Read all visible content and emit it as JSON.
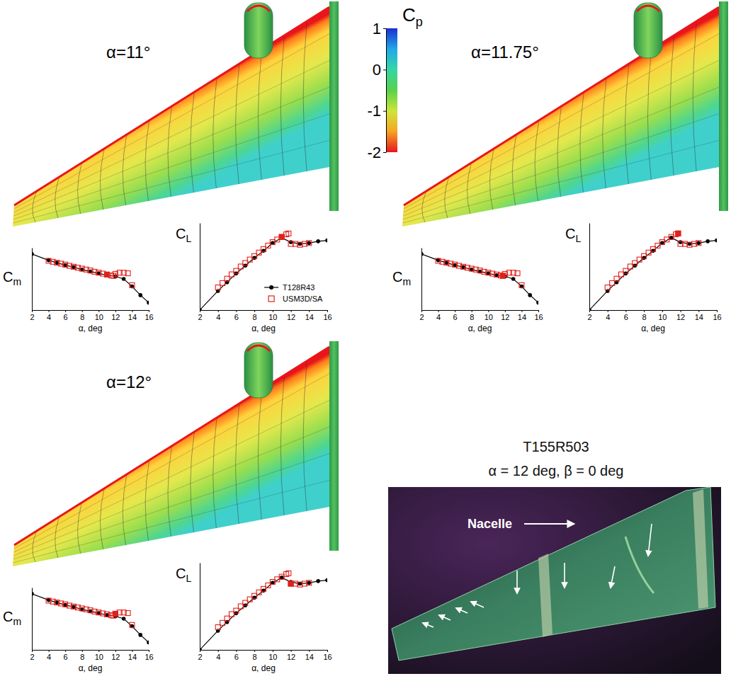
{
  "chart_data": [
    {
      "type": "line",
      "xlabel": "α, deg",
      "ylabel": "Cm",
      "xlim": [
        2,
        16
      ],
      "xticks": [
        2,
        4,
        6,
        8,
        10,
        12,
        14,
        16
      ],
      "ylim": [
        0,
        1
      ],
      "tick_labels": "x",
      "series": [
        {
          "color": "#000000",
          "marker": "circle",
          "line_style": "solid",
          "x": [
            2,
            4,
            5,
            6,
            7,
            8,
            9,
            10,
            11,
            12,
            13,
            14,
            15,
            16
          ],
          "values": [
            0.9,
            0.8,
            0.76,
            0.72,
            0.69,
            0.65,
            0.62,
            0.59,
            0.56,
            0.54,
            0.5,
            0.38,
            0.24,
            0.12
          ]
        },
        {
          "color": "#e0201b",
          "marker": "square-open",
          "line_style": "none",
          "x": [
            4,
            4.5,
            5,
            5.5,
            6,
            6.5,
            7,
            7.5,
            8,
            8.5,
            9,
            9.5,
            10,
            10.5,
            11,
            11.5,
            11.75,
            12,
            12.5,
            13,
            13.5,
            14
          ],
          "values": [
            0.79,
            0.775,
            0.76,
            0.745,
            0.73,
            0.71,
            0.695,
            0.68,
            0.665,
            0.65,
            0.635,
            0.615,
            0.6,
            0.585,
            0.57,
            0.555,
            0.55,
            0.58,
            0.6,
            0.6,
            0.59,
            0.4
          ]
        },
        {
          "color": "#e0201b",
          "marker": "square",
          "line_style": "none",
          "x": [
            11
          ],
          "values": [
            0.57
          ]
        }
      ]
    },
    {
      "type": "line",
      "xlabel": "α, deg",
      "ylabel": "CL",
      "xlim": [
        2,
        16
      ],
      "xticks": [
        2,
        4,
        6,
        8,
        10,
        12,
        14,
        16
      ],
      "ylim": [
        0,
        1
      ],
      "tick_labels": "x",
      "legend": "lower-right",
      "series": [
        {
          "name": "T128R43",
          "color": "#000000",
          "marker": "circle",
          "line_style": "solid",
          "x": [
            2,
            4,
            5,
            6,
            7,
            8,
            9,
            10,
            11,
            12,
            13,
            14,
            15,
            16
          ],
          "values": [
            0,
            0.22,
            0.32,
            0.42,
            0.51,
            0.6,
            0.68,
            0.77,
            0.83,
            0.78,
            0.76,
            0.77,
            0.79,
            0.8
          ]
        },
        {
          "name": "USM3D/SA",
          "color": "#e0201b",
          "marker": "square-open",
          "line_style": "none",
          "x": [
            4,
            4.5,
            5,
            5.5,
            6,
            6.5,
            7,
            7.5,
            8,
            8.5,
            9,
            9.5,
            10,
            10.5,
            11,
            11.5,
            11.75,
            12,
            12.5,
            13,
            13.5,
            14
          ],
          "values": [
            0.26,
            0.31,
            0.36,
            0.41,
            0.45,
            0.5,
            0.54,
            0.58,
            0.62,
            0.66,
            0.7,
            0.74,
            0.78,
            0.81,
            0.84,
            0.87,
            0.88,
            0.76,
            0.76,
            0.75,
            0.76,
            0.77
          ]
        },
        {
          "color": "#e0201b",
          "marker": "square",
          "line_style": "none",
          "x": [
            11
          ],
          "values": [
            0.84
          ]
        }
      ]
    },
    {
      "type": "line",
      "xlabel": "α, deg",
      "ylabel": "Cm",
      "xlim": [
        2,
        16
      ],
      "xticks": [
        2,
        4,
        6,
        8,
        10,
        12,
        14,
        16
      ],
      "ylim": [
        0,
        1
      ],
      "tick_labels": "x",
      "series": [
        {
          "color": "#000000",
          "marker": "circle",
          "line_style": "solid",
          "x": [
            2,
            4,
            5,
            6,
            7,
            8,
            9,
            10,
            11,
            12,
            13,
            14,
            15,
            16
          ],
          "values": [
            0.9,
            0.8,
            0.76,
            0.72,
            0.69,
            0.65,
            0.62,
            0.59,
            0.56,
            0.54,
            0.5,
            0.38,
            0.24,
            0.12
          ]
        },
        {
          "color": "#e0201b",
          "marker": "square-open",
          "line_style": "none",
          "x": [
            4,
            4.5,
            5,
            5.5,
            6,
            6.5,
            7,
            7.5,
            8,
            8.5,
            9,
            9.5,
            10,
            10.5,
            11,
            11.5,
            11.75,
            12,
            12.5,
            13,
            13.5,
            14
          ],
          "values": [
            0.79,
            0.775,
            0.76,
            0.745,
            0.73,
            0.71,
            0.695,
            0.68,
            0.665,
            0.65,
            0.635,
            0.615,
            0.6,
            0.585,
            0.57,
            0.555,
            0.55,
            0.58,
            0.6,
            0.6,
            0.59,
            0.4
          ]
        },
        {
          "color": "#e0201b",
          "marker": "square",
          "line_style": "none",
          "x": [
            11.75
          ],
          "values": [
            0.55
          ]
        }
      ]
    },
    {
      "type": "line",
      "xlabel": "α, deg",
      "ylabel": "CL",
      "xlim": [
        2,
        16
      ],
      "xticks": [
        2,
        4,
        6,
        8,
        10,
        12,
        14,
        16
      ],
      "ylim": [
        0,
        1
      ],
      "tick_labels": "x",
      "series": [
        {
          "color": "#000000",
          "marker": "circle",
          "line_style": "solid",
          "x": [
            2,
            4,
            5,
            6,
            7,
            8,
            9,
            10,
            11,
            12,
            13,
            14,
            15,
            16
          ],
          "values": [
            0,
            0.22,
            0.32,
            0.42,
            0.51,
            0.6,
            0.68,
            0.77,
            0.83,
            0.78,
            0.76,
            0.77,
            0.79,
            0.8
          ]
        },
        {
          "color": "#e0201b",
          "marker": "square-open",
          "line_style": "none",
          "x": [
            4,
            4.5,
            5,
            5.5,
            6,
            6.5,
            7,
            7.5,
            8,
            8.5,
            9,
            9.5,
            10,
            10.5,
            11,
            11.5,
            11.75,
            12,
            12.5,
            13,
            13.5,
            14
          ],
          "values": [
            0.26,
            0.31,
            0.36,
            0.41,
            0.45,
            0.5,
            0.54,
            0.58,
            0.62,
            0.66,
            0.7,
            0.74,
            0.78,
            0.81,
            0.84,
            0.87,
            0.88,
            0.76,
            0.76,
            0.75,
            0.76,
            0.77
          ]
        },
        {
          "color": "#e0201b",
          "marker": "square",
          "line_style": "none",
          "x": [
            11.75
          ],
          "values": [
            0.88
          ]
        }
      ]
    },
    {
      "type": "line",
      "xlabel": "α, deg",
      "ylabel": "Cm",
      "xlim": [
        2,
        16
      ],
      "xticks": [
        2,
        4,
        6,
        8,
        10,
        12,
        14,
        16
      ],
      "ylim": [
        0,
        1
      ],
      "tick_labels": "x",
      "series": [
        {
          "color": "#000000",
          "marker": "circle",
          "line_style": "solid",
          "x": [
            2,
            4,
            5,
            6,
            7,
            8,
            9,
            10,
            11,
            12,
            13,
            14,
            15,
            16
          ],
          "values": [
            0.9,
            0.8,
            0.76,
            0.72,
            0.69,
            0.65,
            0.62,
            0.59,
            0.56,
            0.54,
            0.5,
            0.38,
            0.24,
            0.12
          ]
        },
        {
          "color": "#e0201b",
          "marker": "square-open",
          "line_style": "none",
          "x": [
            4,
            4.5,
            5,
            5.5,
            6,
            6.5,
            7,
            7.5,
            8,
            8.5,
            9,
            9.5,
            10,
            10.5,
            11,
            11.5,
            11.75,
            12,
            12.5,
            13,
            13.5,
            14
          ],
          "values": [
            0.79,
            0.775,
            0.76,
            0.745,
            0.73,
            0.71,
            0.695,
            0.68,
            0.665,
            0.65,
            0.635,
            0.615,
            0.6,
            0.585,
            0.57,
            0.555,
            0.55,
            0.58,
            0.6,
            0.6,
            0.59,
            0.4
          ]
        },
        {
          "color": "#e0201b",
          "marker": "square",
          "line_style": "none",
          "x": [
            12
          ],
          "values": [
            0.58
          ]
        }
      ]
    },
    {
      "type": "line",
      "xlabel": "α, deg",
      "ylabel": "CL",
      "xlim": [
        2,
        16
      ],
      "xticks": [
        2,
        4,
        6,
        8,
        10,
        12,
        14,
        16
      ],
      "ylim": [
        0,
        1
      ],
      "tick_labels": "x",
      "series": [
        {
          "color": "#000000",
          "marker": "circle",
          "line_style": "solid",
          "x": [
            2,
            4,
            5,
            6,
            7,
            8,
            9,
            10,
            11,
            12,
            13,
            14,
            15,
            16
          ],
          "values": [
            0,
            0.22,
            0.32,
            0.42,
            0.51,
            0.6,
            0.68,
            0.77,
            0.83,
            0.78,
            0.76,
            0.77,
            0.79,
            0.8
          ]
        },
        {
          "color": "#e0201b",
          "marker": "square-open",
          "line_style": "none",
          "x": [
            4,
            4.5,
            5,
            5.5,
            6,
            6.5,
            7,
            7.5,
            8,
            8.5,
            9,
            9.5,
            10,
            10.5,
            11,
            11.5,
            11.75,
            12,
            12.5,
            13,
            13.5,
            14
          ],
          "values": [
            0.26,
            0.31,
            0.36,
            0.41,
            0.45,
            0.5,
            0.54,
            0.58,
            0.62,
            0.66,
            0.7,
            0.74,
            0.78,
            0.81,
            0.84,
            0.87,
            0.88,
            0.76,
            0.76,
            0.75,
            0.76,
            0.77
          ]
        },
        {
          "color": "#e0201b",
          "marker": "square",
          "line_style": "none",
          "x": [
            12
          ],
          "values": [
            0.76
          ]
        }
      ]
    }
  ],
  "panels": [
    {
      "title": "α=11°"
    },
    {
      "title": "α=11.75°"
    },
    {
      "title": "α=12°"
    }
  ],
  "colorbar": {
    "title": "Cp",
    "range": [
      -2,
      1
    ],
    "ticks": [
      1,
      0,
      -1,
      -2
    ]
  },
  "photo": {
    "title": "T155R503",
    "subtitle": "α = 12 deg, β = 0 deg",
    "annotation": "Nacelle"
  }
}
